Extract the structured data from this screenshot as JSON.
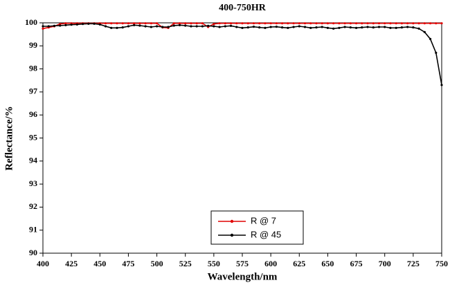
{
  "chart_data": {
    "type": "line",
    "title": "400-750HR",
    "x_label": "Wavelength/nm",
    "y_label": "Reflectance/%",
    "x": [
      400,
      405,
      410,
      415,
      420,
      425,
      430,
      435,
      440,
      445,
      450,
      455,
      460,
      465,
      470,
      475,
      480,
      485,
      490,
      495,
      500,
      505,
      510,
      515,
      520,
      525,
      530,
      535,
      540,
      545,
      550,
      555,
      560,
      565,
      570,
      575,
      580,
      585,
      590,
      595,
      600,
      605,
      610,
      615,
      620,
      625,
      630,
      635,
      640,
      645,
      650,
      655,
      660,
      665,
      670,
      675,
      680,
      685,
      690,
      695,
      700,
      705,
      710,
      715,
      720,
      725,
      730,
      735,
      740,
      745,
      750
    ],
    "series": [
      {
        "name": "R @ 7",
        "color": "#e00000",
        "values": [
          99.75,
          99.8,
          99.85,
          99.95,
          99.98,
          99.98,
          99.98,
          99.98,
          99.98,
          99.98,
          99.98,
          99.98,
          99.98,
          99.98,
          99.98,
          99.98,
          99.98,
          99.98,
          99.98,
          99.98,
          99.98,
          99.8,
          99.78,
          99.98,
          99.98,
          99.98,
          99.98,
          99.98,
          99.98,
          99.82,
          99.95,
          99.98,
          99.98,
          99.98,
          99.98,
          99.98,
          99.98,
          99.98,
          99.98,
          99.98,
          99.98,
          99.98,
          99.98,
          99.98,
          99.98,
          99.98,
          99.98,
          99.98,
          99.98,
          99.98,
          99.98,
          99.98,
          99.98,
          99.98,
          99.98,
          99.98,
          99.98,
          99.98,
          99.98,
          99.98,
          99.98,
          99.98,
          99.98,
          99.98,
          99.98,
          99.98,
          99.98,
          99.98,
          99.98,
          99.98,
          99.98
        ]
      },
      {
        "name": "R @ 45",
        "color": "#000000",
        "values": [
          99.85,
          99.85,
          99.87,
          99.88,
          99.9,
          99.92,
          99.93,
          99.95,
          99.96,
          99.96,
          99.93,
          99.85,
          99.78,
          99.78,
          99.8,
          99.85,
          99.9,
          99.88,
          99.85,
          99.82,
          99.85,
          99.82,
          99.82,
          99.88,
          99.9,
          99.88,
          99.85,
          99.85,
          99.85,
          99.87,
          99.85,
          99.82,
          99.85,
          99.87,
          99.82,
          99.78,
          99.8,
          99.83,
          99.8,
          99.78,
          99.82,
          99.83,
          99.8,
          99.78,
          99.82,
          99.85,
          99.82,
          99.78,
          99.8,
          99.82,
          99.78,
          99.75,
          99.78,
          99.82,
          99.8,
          99.78,
          99.8,
          99.82,
          99.8,
          99.82,
          99.82,
          99.78,
          99.78,
          99.8,
          99.82,
          99.8,
          99.75,
          99.6,
          99.3,
          98.7,
          97.3
        ]
      }
    ],
    "xlim": [
      400,
      750
    ],
    "xticks": [
      400,
      425,
      450,
      475,
      500,
      525,
      550,
      575,
      600,
      625,
      650,
      675,
      700,
      725,
      750
    ],
    "ylim": [
      90,
      100
    ],
    "yticks": [
      90,
      91,
      92,
      93,
      94,
      95,
      96,
      97,
      98,
      99,
      100
    ]
  }
}
